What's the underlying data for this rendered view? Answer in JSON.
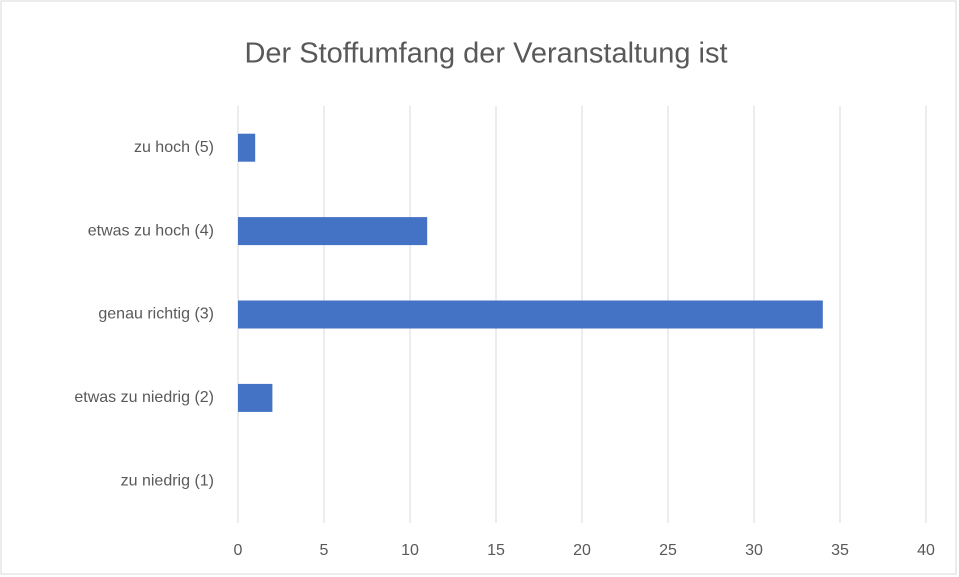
{
  "chart_data": {
    "type": "bar",
    "orientation": "horizontal",
    "title": "Der Stoffumfang der Veranstaltung ist",
    "categories": [
      "zu hoch (5)",
      "etwas zu hoch (4)",
      "genau richtig (3)",
      "etwas zu niedrig (2)",
      "zu niedrig (1)"
    ],
    "values": [
      1,
      11,
      34,
      2,
      0
    ],
    "color": "#4472c4",
    "xlim": [
      0,
      40
    ],
    "xticks": [
      0,
      5,
      10,
      15,
      20,
      25,
      30,
      35,
      40
    ],
    "grid": true
  }
}
